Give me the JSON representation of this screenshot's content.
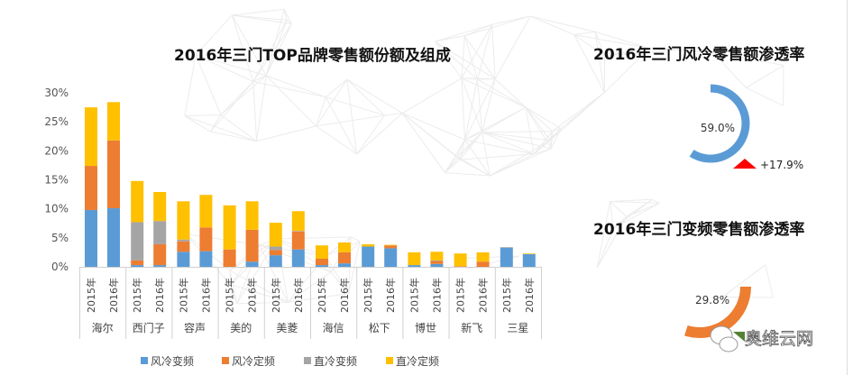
{
  "chart_data": [
    {
      "type": "bar",
      "stacked": true,
      "title": "2016年三门TOP品牌零售额份额及组成",
      "ylim": [
        0,
        30
      ],
      "yticks": [
        "0%",
        "5%",
        "10%",
        "15%",
        "20%",
        "25%",
        "30%"
      ],
      "brands": [
        "海尔",
        "西门子",
        "容声",
        "美的",
        "美菱",
        "海信",
        "松下",
        "博世",
        "新飞",
        "三星"
      ],
      "years": [
        "2015年",
        "2016年"
      ],
      "legend_position": "bottom",
      "series": [
        {
          "name": "风冷变频",
          "color": "#5B9BD5",
          "values": [
            9.8,
            10.1,
            0.3,
            0.3,
            2.6,
            2.7,
            0,
            0.9,
            2.0,
            3.0,
            0.3,
            0.6,
            3.5,
            3.2,
            0.3,
            0.5,
            0,
            0,
            3.3,
            2.2
          ]
        },
        {
          "name": "风冷定频",
          "color": "#ED7D31",
          "values": [
            7.6,
            11.7,
            0.8,
            3.6,
            1.8,
            4.1,
            3.0,
            5.5,
            0.9,
            3.1,
            1.1,
            1.9,
            0,
            0.5,
            0,
            0.5,
            0.1,
            0.9,
            0,
            0
          ]
        },
        {
          "name": "直冷变频",
          "color": "#A5A5A5",
          "values": [
            0,
            0,
            6.6,
            4.0,
            0.3,
            0,
            0,
            0,
            0.6,
            0.1,
            0,
            0,
            0,
            0,
            0,
            0.1,
            0,
            0,
            0.1,
            0
          ]
        },
        {
          "name": "直冷定频",
          "color": "#FFC000",
          "values": [
            10.1,
            6.6,
            7.1,
            5.0,
            6.6,
            5.6,
            7.6,
            4.9,
            4.1,
            3.4,
            2.3,
            1.7,
            0.4,
            0.1,
            2.2,
            1.5,
            2.2,
            1.6,
            0,
            0.1
          ]
        }
      ]
    },
    {
      "type": "pie",
      "donut": true,
      "title": "2016年三门风冷零售额渗透率",
      "value": 59.0,
      "label": "59.0%",
      "color": "#5B9BD5",
      "change_label": "+17.9%",
      "change_color": "#FF0000"
    },
    {
      "type": "pie",
      "donut": true,
      "title": "2016年三门变频零售额渗透率",
      "value": 29.8,
      "label": "29.8%",
      "color": "#ED7D31",
      "change_color": "#548235"
    }
  ],
  "watermark": "奥维云网"
}
